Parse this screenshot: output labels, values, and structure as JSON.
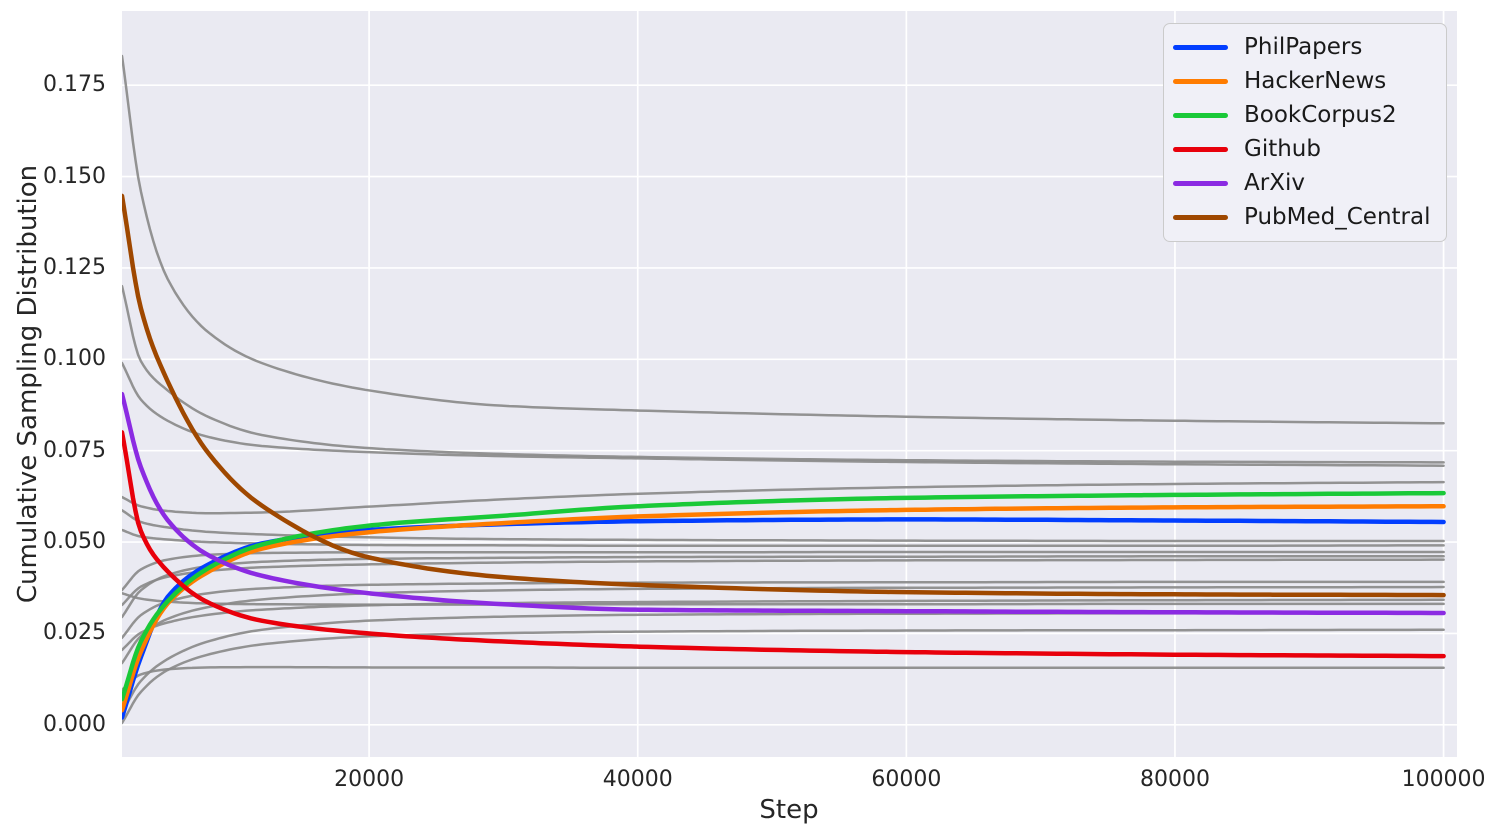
{
  "chart_data": {
    "type": "line",
    "title": "",
    "xlabel": "Step",
    "ylabel": "Cumulative Sampling Distribution",
    "grid": true,
    "legend_position": "upper right",
    "background_color": "#EAEAF2",
    "gridline_color": "#FFFFFF",
    "text_color": "#262626",
    "gray_line_color": "#8A8A8A",
    "xlim": [
      1600,
      101000
    ],
    "ylim": [
      -0.0088,
      0.1953
    ],
    "x_ticks": [
      20000,
      40000,
      60000,
      80000,
      100000
    ],
    "x_tick_labels": [
      "20000",
      "40000",
      "60000",
      "80000",
      "100000"
    ],
    "y_ticks": [
      0.0,
      0.025,
      0.05,
      0.075,
      0.1,
      0.125,
      0.15,
      0.175
    ],
    "y_tick_labels": [
      "0.000",
      "0.025",
      "0.050",
      "0.075",
      "0.100",
      "0.125",
      "0.150",
      "0.175"
    ],
    "steps": [
      1600,
      3000,
      5000,
      8000,
      12000,
      20000,
      30000,
      40000,
      60000,
      80000,
      100000
    ],
    "series": [
      {
        "name": "PhilPapers",
        "color": "#023EFF",
        "values": [
          0.002,
          0.0185,
          0.035,
          0.0438,
          0.0496,
          0.0533,
          0.0549,
          0.0557,
          0.0562,
          0.0559,
          0.0555
        ]
      },
      {
        "name": "HackerNews",
        "color": "#FF7C00",
        "values": [
          0.004,
          0.02,
          0.0332,
          0.0418,
          0.0482,
          0.0527,
          0.0552,
          0.057,
          0.0588,
          0.0595,
          0.0598
        ]
      },
      {
        "name": "BookCorpus2",
        "color": "#1AC938",
        "values": [
          0.007,
          0.0228,
          0.0338,
          0.0428,
          0.0493,
          0.0545,
          0.0572,
          0.0598,
          0.0621,
          0.0629,
          0.0634
        ]
      },
      {
        "name": "Github",
        "color": "#E8000B",
        "values": [
          0.08,
          0.053,
          0.042,
          0.0335,
          0.0285,
          0.025,
          0.0228,
          0.0214,
          0.0199,
          0.0192,
          0.0188
        ]
      },
      {
        "name": "ArXiv",
        "color": "#8B2BE2",
        "values": [
          0.0905,
          0.0705,
          0.056,
          0.0465,
          0.0408,
          0.036,
          0.033,
          0.0315,
          0.0311,
          0.0308,
          0.0306
        ]
      },
      {
        "name": "PubMed_Central",
        "color": "#9F4800",
        "values": [
          0.1447,
          0.114,
          0.094,
          0.0745,
          0.06,
          0.0458,
          0.0404,
          0.0383,
          0.0363,
          0.0357,
          0.0355
        ]
      }
    ],
    "background_series": [
      {
        "values": [
          0.183,
          0.146,
          0.122,
          0.1075,
          0.099,
          0.0915,
          0.0873,
          0.086,
          0.0843,
          0.0832,
          0.0825
        ]
      },
      {
        "values": [
          0.12,
          0.0995,
          0.0915,
          0.0843,
          0.0793,
          0.0757,
          0.0741,
          0.0733,
          0.0724,
          0.072,
          0.0718
        ]
      },
      {
        "values": [
          0.099,
          0.089,
          0.0832,
          0.0788,
          0.0763,
          0.0746,
          0.0735,
          0.0729,
          0.0719,
          0.0713,
          0.0709
        ]
      },
      {
        "values": [
          0.0623,
          0.0598,
          0.0585,
          0.0579,
          0.0581,
          0.0597,
          0.0617,
          0.0632,
          0.065,
          0.0659,
          0.0664
        ]
      },
      {
        "values": [
          0.0587,
          0.0555,
          0.054,
          0.0528,
          0.0521,
          0.0513,
          0.0508,
          0.0506,
          0.0504,
          0.0503,
          0.0503
        ]
      },
      {
        "values": [
          0.0533,
          0.0515,
          0.0507,
          0.05,
          0.0496,
          0.0492,
          0.0491,
          0.049,
          0.049,
          0.049,
          0.0491
        ]
      },
      {
        "values": [
          0.0369,
          0.0425,
          0.0452,
          0.0465,
          0.047,
          0.0472,
          0.0472,
          0.0472,
          0.0473,
          0.0473,
          0.0473
        ]
      },
      {
        "values": [
          0.0295,
          0.0368,
          0.041,
          0.0434,
          0.0446,
          0.0454,
          0.0457,
          0.0459,
          0.046,
          0.0461,
          0.0461
        ]
      },
      {
        "values": [
          0.0328,
          0.0378,
          0.0405,
          0.0421,
          0.0431,
          0.0439,
          0.0444,
          0.0447,
          0.045,
          0.0451,
          0.0452
        ]
      },
      {
        "values": [
          0.0238,
          0.03,
          0.0337,
          0.036,
          0.0373,
          0.0383,
          0.0387,
          0.0389,
          0.039,
          0.0391,
          0.0391
        ]
      },
      {
        "values": [
          0.0169,
          0.0243,
          0.029,
          0.0322,
          0.0343,
          0.036,
          0.0368,
          0.0372,
          0.0375,
          0.0376,
          0.0377
        ]
      },
      {
        "values": [
          0.0205,
          0.0252,
          0.028,
          0.0301,
          0.0315,
          0.0327,
          0.0333,
          0.0336,
          0.0339,
          0.0341,
          0.0342
        ]
      },
      {
        "values": [
          0.036,
          0.0345,
          0.0337,
          0.0332,
          0.033,
          0.0329,
          0.0329,
          0.033,
          0.033,
          0.0331,
          0.0331
        ]
      },
      {
        "values": [
          0.0033,
          0.012,
          0.018,
          0.0228,
          0.026,
          0.0285,
          0.0296,
          0.0301,
          0.0304,
          0.0305,
          0.0305
        ]
      },
      {
        "values": [
          0.0005,
          0.009,
          0.015,
          0.0192,
          0.022,
          0.0242,
          0.0251,
          0.0255,
          0.0258,
          0.0259,
          0.026
        ]
      },
      {
        "values": [
          0.0096,
          0.0138,
          0.0152,
          0.0157,
          0.0158,
          0.0157,
          0.0157,
          0.0156,
          0.0156,
          0.0156,
          0.0156
        ]
      }
    ]
  }
}
